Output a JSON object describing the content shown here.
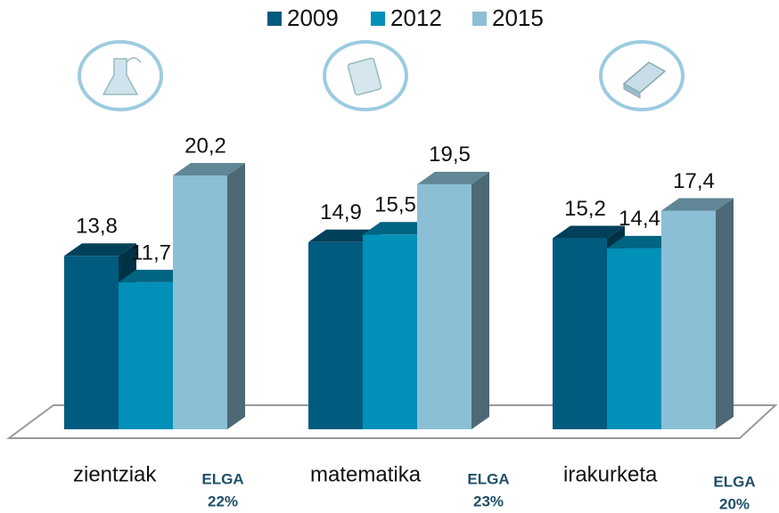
{
  "chart_data": {
    "type": "bar3d",
    "categories": [
      "zientziak",
      "matematika",
      "irakurketa"
    ],
    "series": [
      {
        "name": "2009",
        "color": "#005b7f",
        "values": [
          13.8,
          14.9,
          15.2
        ],
        "value_labels": [
          "13,8",
          "14,9",
          "15,2"
        ]
      },
      {
        "name": "2012",
        "color": "#0090b8",
        "values": [
          11.7,
          15.5,
          14.4
        ],
        "value_labels": [
          "11,7",
          "15,5",
          "14,4"
        ]
      },
      {
        "name": "2015",
        "color": "#8bbfd5",
        "values": [
          20.2,
          19.5,
          17.4
        ],
        "value_labels": [
          "20,2",
          "19,5",
          "17,4"
        ]
      }
    ],
    "annotations": [
      {
        "text": "ELGA",
        "value": "22%"
      },
      {
        "text": "ELGA",
        "value": "23%"
      },
      {
        "text": "ELGA",
        "value": "20%"
      }
    ],
    "legend": "top"
  }
}
